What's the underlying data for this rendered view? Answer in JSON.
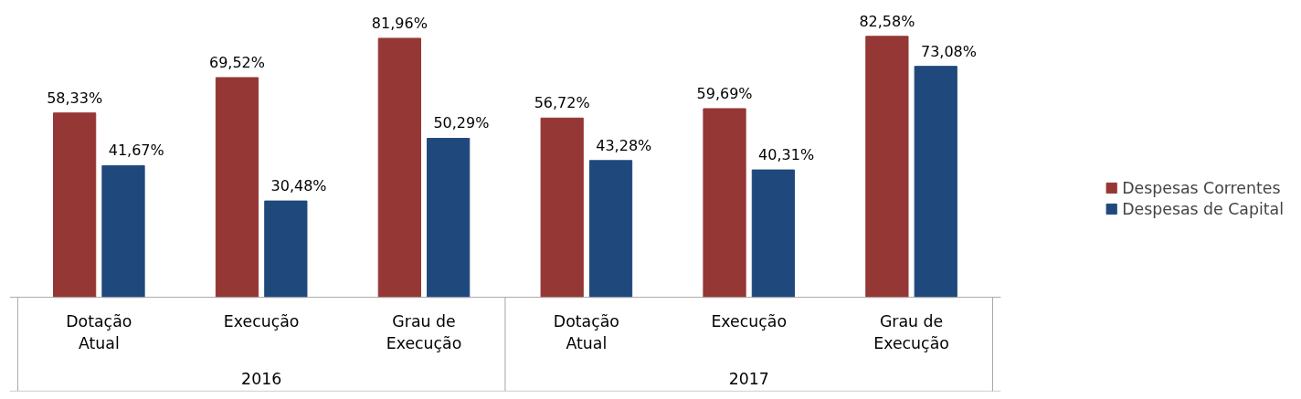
{
  "chart_data": {
    "type": "bar",
    "categories": [
      "Dotação Atual",
      "Execução",
      "Grau de Execução",
      "Dotação Atual",
      "Execução",
      "Grau de Execução"
    ],
    "annotations": [
      "2016",
      "2017"
    ],
    "series": [
      {
        "name": "Despesas Correntes",
        "color": "#953735",
        "values": [
          58.33,
          69.52,
          81.96,
          56.72,
          59.69,
          82.58
        ],
        "value_labels": [
          "58,33%",
          "69,52%",
          "81,96%",
          "56,72%",
          "59,69%",
          "82,58%"
        ]
      },
      {
        "name": "Despesas de Capital",
        "color": "#1f497d",
        "values": [
          41.67,
          30.48,
          50.29,
          43.28,
          40.31,
          73.08
        ],
        "value_labels": [
          "41,67%",
          "30,48%",
          "50,29%",
          "43,28%",
          "40,31%",
          "73,08%"
        ]
      }
    ],
    "legend": "right",
    "grid": false
  }
}
